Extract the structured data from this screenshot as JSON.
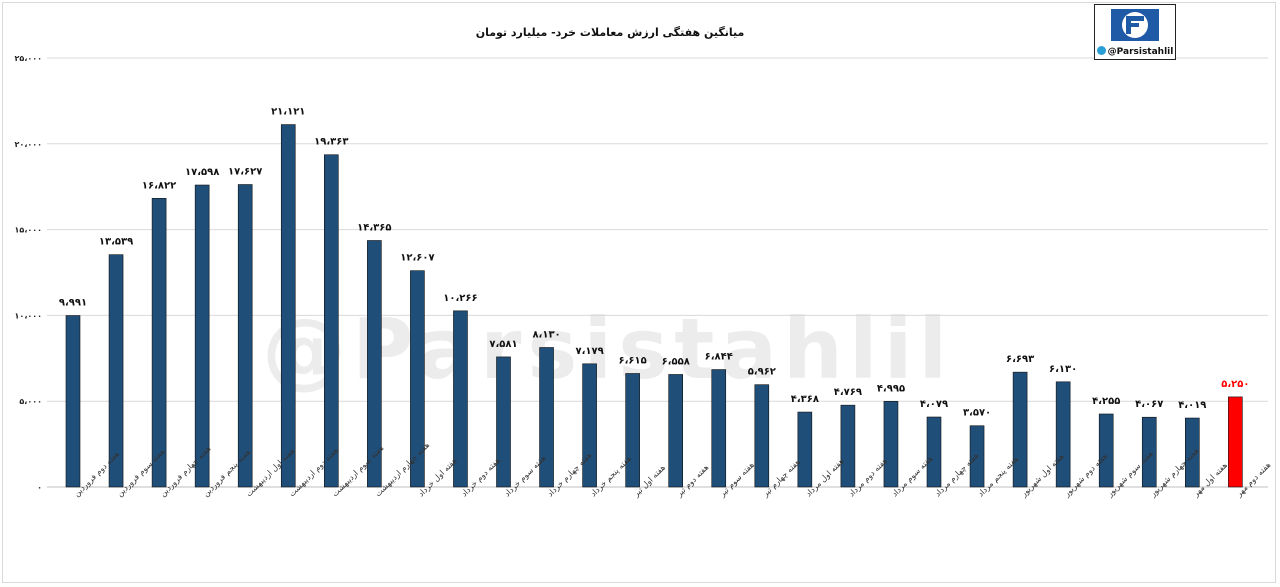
{
  "chart_data": {
    "type": "bar",
    "title": "میانگین هفتگی ارزش معاملات خرد- میلیارد تومان",
    "xlabel": "",
    "ylabel": "",
    "ylim": [
      0,
      25000
    ],
    "yticks": [
      0,
      5000,
      10000,
      15000,
      20000,
      25000
    ],
    "ytick_labels": [
      "۰",
      "۵،۰۰۰",
      "۱۰،۰۰۰",
      "۱۵،۰۰۰",
      "۲۰،۰۰۰",
      "۲۵،۰۰۰"
    ],
    "grid": true,
    "legend": "none",
    "categories": [
      "هفته دوم فروردین",
      "هفته سوم فروردین",
      "هفته چهارم فروردین",
      "هفته پنجم فروردین",
      "هفته اول اردیبهشت",
      "هفته دوم اردیبهشت",
      "هفته سوم اردیبهشت",
      "هفته چهارم اردیبهشت",
      "هفته اول خرداد",
      "هفته دوم خرداد",
      "هفته سوم خرداد",
      "هفته چهارم خرداد",
      "هفته پنجم خرداد",
      "هفته اول تیر",
      "هفته دوم تیر",
      "هفته سوم تیر",
      "هفته چهارم تیر",
      "هفته اول مرداد",
      "هفته دوم مرداد",
      "هفته سوم مرداد",
      "هفته چهارم مرداد",
      "هفته پنجم مرداد",
      "هفته اول شهریور",
      "هفته دوم شهریور",
      "هفته سوم شهریور",
      "هفته چهارم شهریور",
      "هفته اول مهر",
      "هفته دوم مهر"
    ],
    "values": [
      9991,
      13539,
      16822,
      17598,
      17627,
      21121,
      19363,
      14365,
      12607,
      10266,
      7581,
      8130,
      7179,
      6615,
      6558,
      6844,
      5962,
      4368,
      4769,
      4995,
      4079,
      3570,
      6693,
      6130,
      4255,
      4067,
      4019,
      5250
    ],
    "value_labels": [
      "۹،۹۹۱",
      "۱۳،۵۳۹",
      "۱۶،۸۲۲",
      "۱۷،۵۹۸",
      "۱۷،۶۲۷",
      "۲۱،۱۲۱",
      "۱۹،۳۶۳",
      "۱۴،۳۶۵",
      "۱۲،۶۰۷",
      "۱۰،۲۶۶",
      "۷،۵۸۱",
      "۸،۱۳۰",
      "۷،۱۷۹",
      "۶،۶۱۵",
      "۶،۵۵۸",
      "۶،۸۴۴",
      "۵،۹۶۲",
      "۴،۳۶۸",
      "۴،۷۶۹",
      "۴،۹۹۵",
      "۴،۰۷۹",
      "۳،۵۷۰",
      "۶،۶۹۳",
      "۶،۱۳۰",
      "۴،۲۵۵",
      "۴،۰۶۷",
      "۴،۰۱۹",
      "۵،۲۵۰"
    ],
    "bar_color": "#1f4e79",
    "highlight_color": "#ff0000",
    "highlight_index": 27
  },
  "watermark": "@Parsistahlil",
  "logo": {
    "handle": "@Parsistahlil",
    "icon": "telegram-icon",
    "brand_color": "#1f5aa6"
  }
}
